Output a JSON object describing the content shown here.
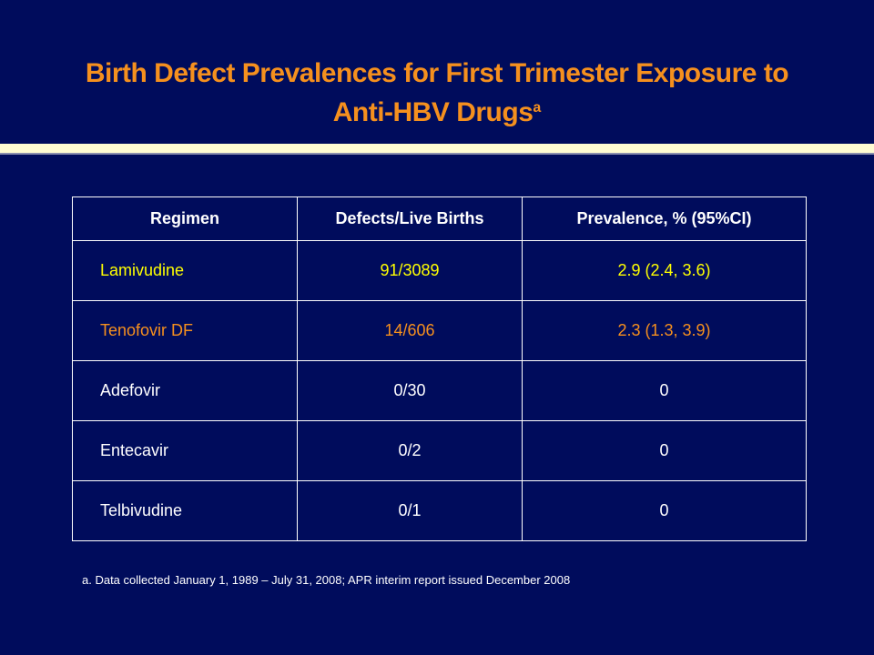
{
  "title": {
    "line1": "Birth Defect Prevalences for First Trimester Exposure to",
    "line2": "Anti-HBV Drugs",
    "superscript": "a"
  },
  "table": {
    "headers": [
      "Regimen",
      "Defects/Live Births",
      "Prevalence, % (95%CI)"
    ],
    "rows": [
      {
        "regimen": "Lamivudine",
        "defects": "91/3089",
        "prevalence": "2.9 (2.4, 3.6)",
        "color": "#ffff00"
      },
      {
        "regimen": "Tenofovir DF",
        "defects": "14/606",
        "prevalence": "2.3 (1.3, 3.9)",
        "color": "#f5901e"
      },
      {
        "regimen": "Adefovir",
        "defects": "0/30",
        "prevalence": "0",
        "color": "#ffffff"
      },
      {
        "regimen": "Entecavir",
        "defects": "0/2",
        "prevalence": "0",
        "color": "#ffffff"
      },
      {
        "regimen": "Telbivudine",
        "defects": "0/1",
        "prevalence": "0",
        "color": "#ffffff"
      }
    ]
  },
  "footnote": "a. Data collected January 1, 1989 – July 31, 2008; APR interim report issued December 2008",
  "colors": {
    "background": "#000c5c",
    "title": "#f5901e",
    "rule": "#fffcd2"
  }
}
